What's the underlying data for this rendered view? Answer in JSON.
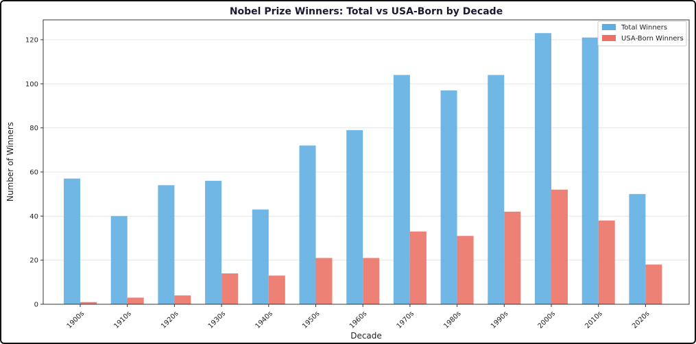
{
  "chart_data": {
    "type": "bar",
    "title": "Nobel Prize Winners: Total vs USA-Born by Decade",
    "xlabel": "Decade",
    "ylabel": "Number of Winners",
    "categories": [
      "1900s",
      "1910s",
      "1920s",
      "1930s",
      "1940s",
      "1950s",
      "1960s",
      "1970s",
      "1980s",
      "1990s",
      "2000s",
      "2010s",
      "2020s"
    ],
    "series": [
      {
        "name": "Total Winners",
        "color": "#5DADE2",
        "values": [
          57,
          40,
          54,
          56,
          43,
          72,
          79,
          104,
          97,
          104,
          123,
          121,
          50
        ]
      },
      {
        "name": "USA-Born Winners",
        "color": "#EC7063",
        "values": [
          1,
          3,
          4,
          14,
          13,
          21,
          21,
          33,
          31,
          42,
          52,
          38,
          18
        ]
      }
    ],
    "ylim": [
      0,
      129
    ],
    "yticks": [
      0,
      20,
      40,
      60,
      80,
      100,
      120
    ],
    "grid": true,
    "legend_position": "top-right"
  }
}
